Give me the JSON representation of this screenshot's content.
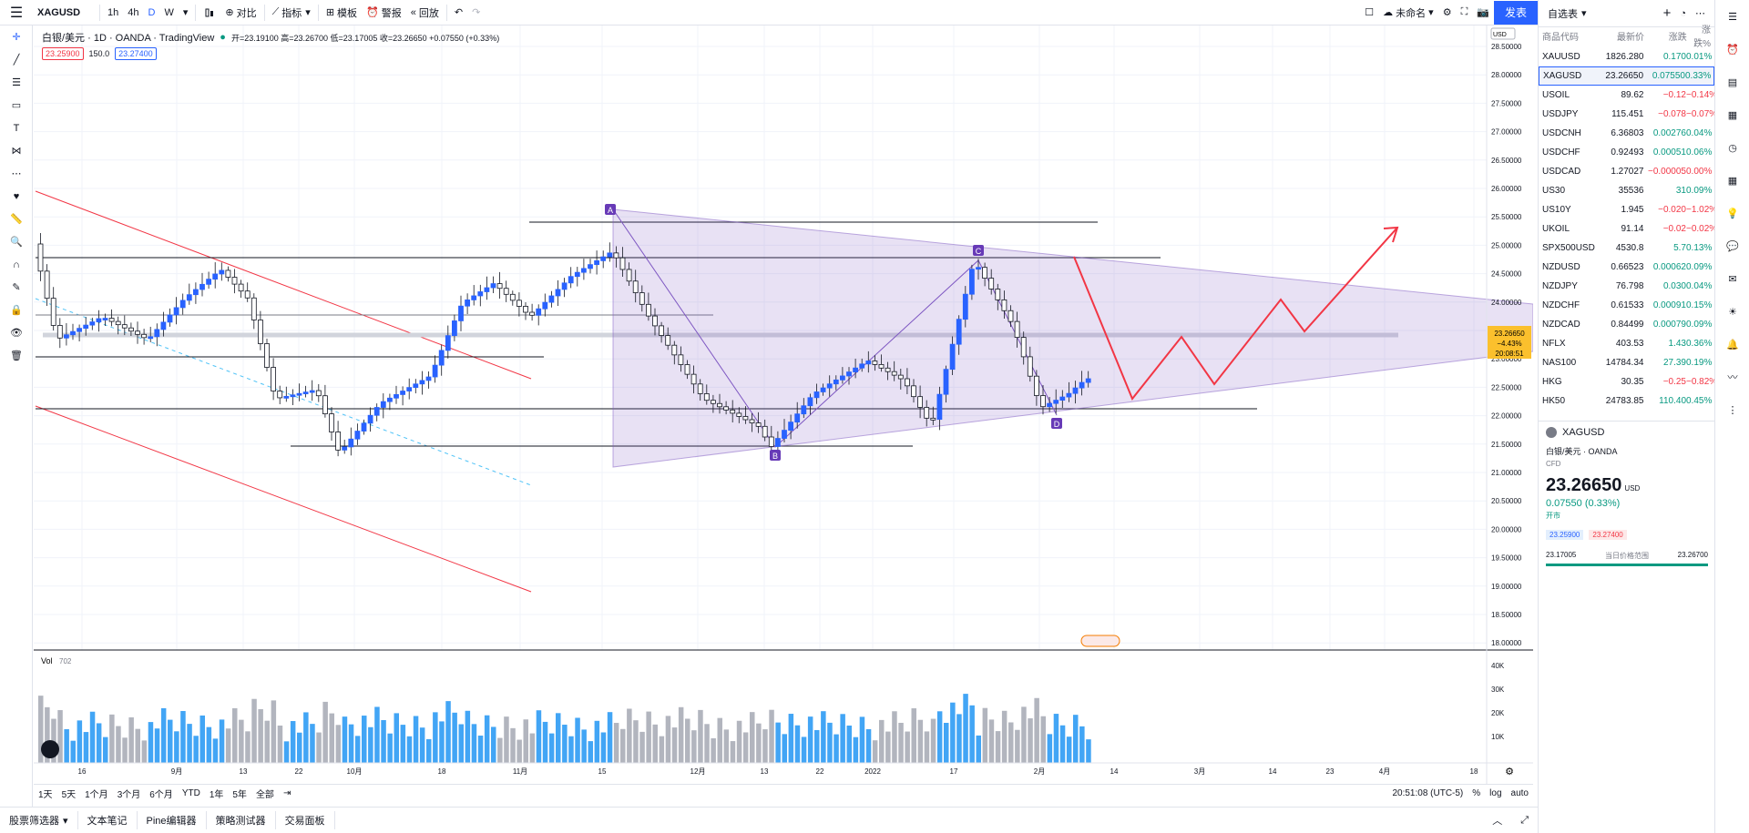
{
  "topbar": {
    "symbol": "XAGUSD",
    "intervals": [
      "1h",
      "4h",
      "D",
      "W"
    ],
    "active_interval": "D",
    "compare_label": "对比",
    "indicators_label": "指标",
    "templates_label": "模板",
    "alert_label": "警报",
    "replay_label": "回放",
    "layout_name": "未命名",
    "publish_label": "发表"
  },
  "legend": {
    "title": "白银/美元 · 1D · OANDA · TradingView",
    "ohlc": "开=23.19100 高=23.26700 低=23.17005 收=23.26650 +0.07550 (+0.33%)",
    "bid": "23.25900",
    "spread": "150.0",
    "ask": "23.27400"
  },
  "price_axis": {
    "currency": "USD",
    "ticks": [
      "28.50000",
      "28.00000",
      "27.50000",
      "27.00000",
      "26.50000",
      "26.00000",
      "25.50000",
      "25.00000",
      "24.50000",
      "24.00000",
      "23.50000",
      "23.00000",
      "22.50000",
      "22.00000",
      "21.50000",
      "21.00000",
      "20.50000",
      "20.00000",
      "19.50000",
      "19.00000",
      "18.50000",
      "18.00000"
    ],
    "current_price": "23.26650",
    "current_change": "−4.43%",
    "countdown": "20:08:51"
  },
  "time_axis": {
    "ticks": [
      "16",
      "9月",
      "13",
      "22",
      "10月",
      "18",
      "11月",
      "15",
      "12月",
      "13",
      "22",
      "2022",
      "17",
      "2月",
      "14",
      "3月",
      "14",
      "23",
      "4月",
      "18"
    ]
  },
  "volume": {
    "label": "Vol",
    "value": "702",
    "ticks": [
      "40K",
      "30K",
      "20K",
      "10K"
    ]
  },
  "pattern_labels": [
    "A",
    "B",
    "C",
    "D"
  ],
  "bottombar": {
    "ranges": [
      "1天",
      "5天",
      "1个月",
      "3个月",
      "6个月",
      "YTD",
      "1年",
      "5年",
      "全部"
    ],
    "clock": "20:51:08 (UTC-5)",
    "percent": "%",
    "log": "log",
    "auto": "auto"
  },
  "footer": {
    "tabs": [
      "股票筛选器",
      "文本笔记",
      "Pine编辑器",
      "策略测试器",
      "交易面板"
    ]
  },
  "watchlist": {
    "title": "自选表",
    "columns": [
      "商品代码",
      "最新价",
      "涨跌",
      "涨跌%"
    ],
    "rows": [
      {
        "sym": "XAUUSD",
        "last": "1826.280",
        "chg": "0.170",
        "pct": "0.01%",
        "dir": "up"
      },
      {
        "sym": "XAGUSD",
        "last": "23.26650",
        "chg": "0.07550",
        "pct": "0.33%",
        "dir": "up"
      },
      {
        "sym": "USOIL",
        "last": "89.62",
        "chg": "−0.12",
        "pct": "−0.14%",
        "dir": "down"
      },
      {
        "sym": "USDJPY",
        "last": "115.451",
        "chg": "−0.078",
        "pct": "−0.07%",
        "dir": "down"
      },
      {
        "sym": "USDCNH",
        "last": "6.36803",
        "chg": "0.00276",
        "pct": "0.04%",
        "dir": "up"
      },
      {
        "sym": "USDCHF",
        "last": "0.92493",
        "chg": "0.00051",
        "pct": "0.06%",
        "dir": "up"
      },
      {
        "sym": "USDCAD",
        "last": "1.27027",
        "chg": "−0.00005",
        "pct": "0.00%",
        "dir": "down"
      },
      {
        "sym": "US30",
        "last": "35536",
        "chg": "31",
        "pct": "0.09%",
        "dir": "up"
      },
      {
        "sym": "US10Y",
        "last": "1.945",
        "chg": "−0.020",
        "pct": "−1.02%",
        "dir": "down"
      },
      {
        "sym": "UKOIL",
        "last": "91.14",
        "chg": "−0.02",
        "pct": "−0.02%",
        "dir": "down"
      },
      {
        "sym": "SPX500USD",
        "last": "4530.8",
        "chg": "5.7",
        "pct": "0.13%",
        "dir": "up"
      },
      {
        "sym": "NZDUSD",
        "last": "0.66523",
        "chg": "0.00062",
        "pct": "0.09%",
        "dir": "up"
      },
      {
        "sym": "NZDJPY",
        "last": "76.798",
        "chg": "0.030",
        "pct": "0.04%",
        "dir": "up"
      },
      {
        "sym": "NZDCHF",
        "last": "0.61533",
        "chg": "0.00091",
        "pct": "0.15%",
        "dir": "up"
      },
      {
        "sym": "NZDCAD",
        "last": "0.84499",
        "chg": "0.00079",
        "pct": "0.09%",
        "dir": "up"
      },
      {
        "sym": "NFLX",
        "last": "403.53",
        "chg": "1.43",
        "pct": "0.36%",
        "dir": "up"
      },
      {
        "sym": "NAS100",
        "last": "14784.34",
        "chg": "27.39",
        "pct": "0.19%",
        "dir": "up"
      },
      {
        "sym": "HKG",
        "last": "30.35",
        "chg": "−0.25",
        "pct": "−0.82%",
        "dir": "down"
      },
      {
        "sym": "HK50",
        "last": "24783.85",
        "chg": "110.40",
        "pct": "0.45%",
        "dir": "up"
      }
    ]
  },
  "detail": {
    "symbol": "XAGUSD",
    "name": "白银/美元 · OANDA",
    "type": "CFD",
    "price": "23.26650",
    "currency": "USD",
    "change": "0.07550 (0.33%)",
    "status": "开市",
    "bid": "23.25900",
    "ask": "23.27400",
    "low": "23.17005",
    "range_label": "当日价格范围",
    "high": "23.26700"
  },
  "colors": {
    "up": "#2962ff",
    "down": "#b2b5be",
    "accent": "#2962ff",
    "triangle": "#7e57c2",
    "channel": "#f23645"
  }
}
